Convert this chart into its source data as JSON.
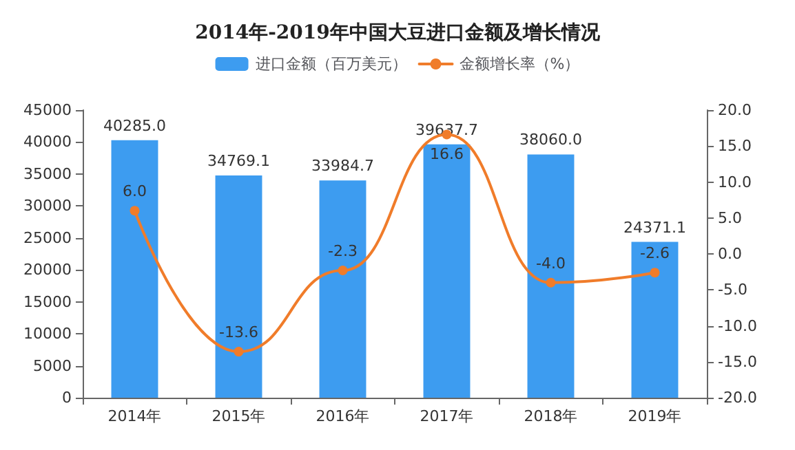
{
  "chart_data": {
    "type": "bar",
    "title": "2014年-2019年中国大豆进口金额及增长情况",
    "categories": [
      "2014年",
      "2015年",
      "2016年",
      "2017年",
      "2018年",
      "2019年"
    ],
    "series": [
      {
        "name": "进口金额（百万美元）",
        "color": "#3d9cf0",
        "values": [
          40285.0,
          34769.1,
          33984.7,
          39637.7,
          38060.0,
          24371.1
        ],
        "value_labels": [
          "40285.0",
          "34769.1",
          "33984.7",
          "39637.7",
          "38060.0",
          "24371.1"
        ]
      },
      {
        "name": "金额增长率（%）",
        "type": "line",
        "axis": "y2",
        "color": "#f07c2a",
        "values": [
          6.0,
          -13.6,
          -2.3,
          16.6,
          -4.0,
          -2.6
        ],
        "value_labels": [
          "6.0",
          "-13.6",
          "-2.3",
          "16.6",
          "-4.0",
          "-2.6"
        ]
      }
    ],
    "ylim": [
      0,
      45000
    ],
    "yticks": [
      0,
      5000,
      10000,
      15000,
      20000,
      25000,
      30000,
      35000,
      40000,
      45000
    ],
    "y2lim": [
      -20,
      20
    ],
    "y2ticks": [
      {
        "value": -20,
        "label": "-20.0"
      },
      {
        "value": -15,
        "label": "-15.0"
      },
      {
        "value": -10,
        "label": "-10.0"
      },
      {
        "value": -5,
        "label": "-5.0"
      },
      {
        "value": 0,
        "label": "0.0"
      },
      {
        "value": 5,
        "label": "5.0"
      },
      {
        "value": 10,
        "label": "10.0"
      },
      {
        "value": 15,
        "label": "15.0"
      },
      {
        "value": 20,
        "label": "20.0"
      }
    ],
    "legend": "top",
    "grid": false,
    "marker": "circle",
    "line_style": "solid"
  }
}
